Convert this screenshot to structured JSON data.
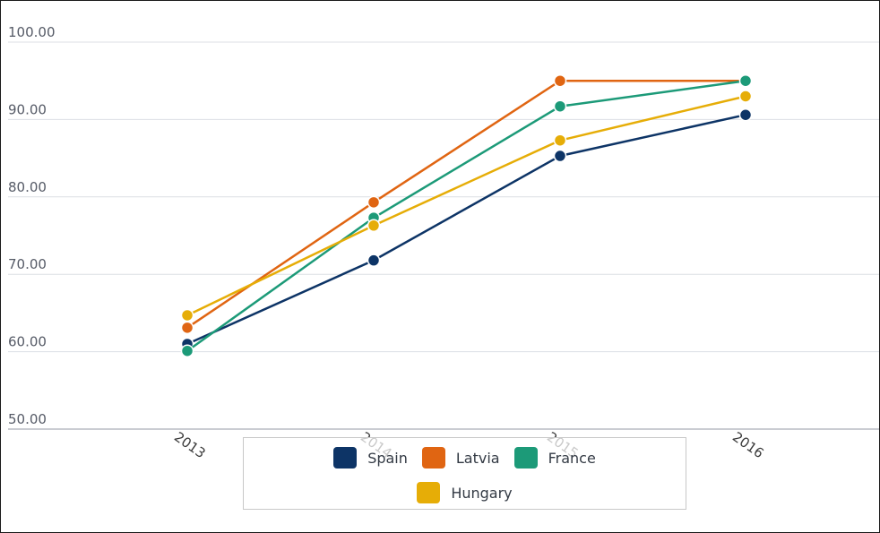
{
  "chart_data": {
    "type": "line",
    "title": "",
    "xlabel": "",
    "ylabel": "",
    "categories": [
      "2013",
      "2014",
      "2015",
      "2016"
    ],
    "y_ticks": [
      "50.00",
      "60.00",
      "70.00",
      "80.00",
      "90.00",
      "100.00"
    ],
    "ylim": [
      50,
      100
    ],
    "grid": "horizontal",
    "legend_position": "bottom-center",
    "series": [
      {
        "name": "Spain",
        "color": "#0d3466",
        "values": [
          61.0,
          71.8,
          85.3,
          90.6
        ]
      },
      {
        "name": "Latvia",
        "color": "#e06512",
        "values": [
          63.1,
          79.3,
          95.0,
          95.0
        ]
      },
      {
        "name": "France",
        "color": "#1c9a78",
        "values": [
          60.1,
          77.3,
          91.7,
          95.0
        ]
      },
      {
        "name": "Hungary",
        "color": "#e6ad07",
        "values": [
          64.7,
          76.3,
          87.3,
          93.0
        ]
      }
    ]
  }
}
